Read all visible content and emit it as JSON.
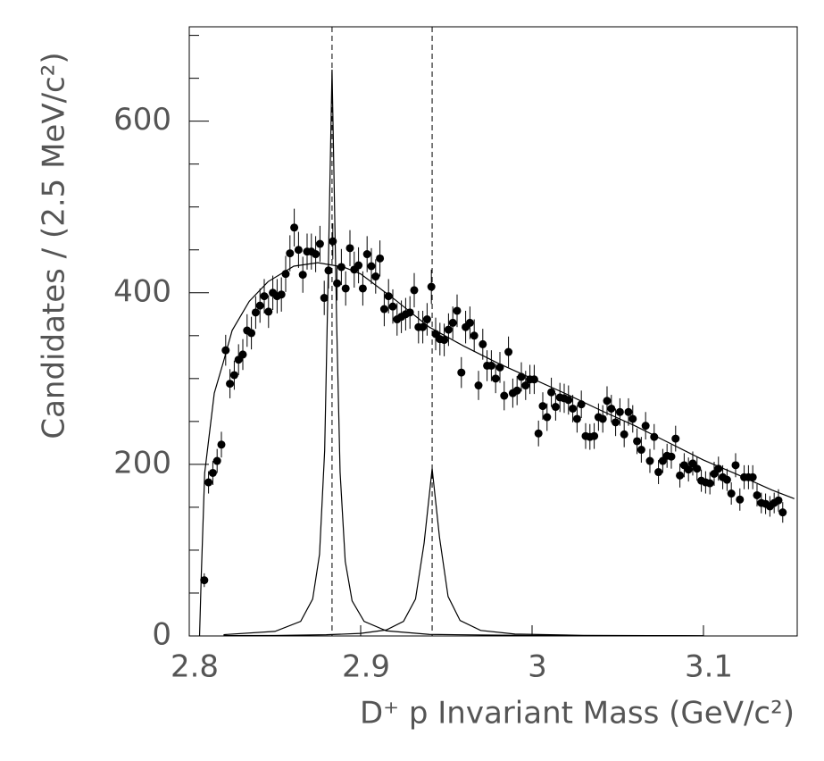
{
  "chart_data": {
    "type": "scatter",
    "x_label": "D⁺ p Invariant Mass (GeV/c²)",
    "y_label": "Candidates / (2.5 MeV/c²)",
    "xlim": [
      2.8,
      3.1547
    ],
    "ylim": [
      0,
      710
    ],
    "xticks": [
      2.8,
      2.9,
      3,
      3.1
    ],
    "yticks": [
      0,
      200,
      400,
      600
    ],
    "y_minor_ticks": [
      50,
      100,
      150,
      250,
      300,
      350,
      450,
      500,
      550,
      650,
      700
    ],
    "points": {
      "color": "#000000",
      "x": [
        2.80875,
        2.81125,
        2.81375,
        2.81625,
        2.81875,
        2.82125,
        2.82375,
        2.82625,
        2.82875,
        2.83125,
        2.83375,
        2.83625,
        2.83875,
        2.84125,
        2.84375,
        2.84625,
        2.84875,
        2.85125,
        2.85375,
        2.85625,
        2.85875,
        2.86125,
        2.86375,
        2.86625,
        2.86875,
        2.87125,
        2.87375,
        2.87625,
        2.87875,
        2.88125,
        2.88375,
        2.88625,
        2.88875,
        2.89125,
        2.89375,
        2.89625,
        2.89875,
        2.90125,
        2.90375,
        2.90625,
        2.90875,
        2.91125,
        2.91375,
        2.91625,
        2.91875,
        2.92125,
        2.92375,
        2.92625,
        2.92875,
        2.93125,
        2.93375,
        2.93625,
        2.93875,
        2.94125,
        2.94375,
        2.94625,
        2.94875,
        2.95125,
        2.95375,
        2.95625,
        2.95875,
        2.96125,
        2.96375,
        2.96625,
        2.96875,
        2.97125,
        2.97375,
        2.97625,
        2.97875,
        2.98125,
        2.98375,
        2.98625,
        2.98875,
        2.99125,
        2.99375,
        2.99625,
        2.99875,
        3.00125,
        3.00375,
        3.00625,
        3.00875,
        3.01125,
        3.01375,
        3.01625,
        3.01875,
        3.02125,
        3.02375,
        3.02625,
        3.02875,
        3.03125,
        3.03375,
        3.03625,
        3.03875,
        3.04125,
        3.04375,
        3.04625,
        3.04875,
        3.05125,
        3.05375,
        3.05625,
        3.05875,
        3.06125,
        3.06375,
        3.06625,
        3.06875,
        3.07125,
        3.07375,
        3.07625,
        3.07875,
        3.08125,
        3.08375,
        3.08625,
        3.08875,
        3.09125,
        3.09375,
        3.09625,
        3.09875,
        3.10125,
        3.10375,
        3.10625,
        3.10875,
        3.11125,
        3.11375,
        3.11625,
        3.11875,
        3.12125,
        3.12375,
        3.12625,
        3.12875,
        3.13125,
        3.13375,
        3.13625,
        3.13875,
        3.14125,
        3.14375,
        3.14625
      ],
      "values": [
        65,
        179,
        190,
        204,
        223,
        333,
        294,
        304,
        322,
        328,
        356,
        353,
        377,
        385,
        396,
        378,
        400,
        396,
        398,
        422,
        446,
        476,
        450,
        421,
        448,
        448,
        445,
        457,
        394,
        426,
        460,
        411,
        430,
        405,
        452,
        427,
        432,
        405,
        445,
        431,
        419,
        440,
        381,
        396,
        384,
        369,
        372,
        375,
        377,
        403,
        360,
        360,
        369,
        407,
        352,
        346,
        345,
        357,
        365,
        379,
        307,
        360,
        365,
        350,
        292,
        340,
        315,
        315,
        300,
        313,
        280,
        331,
        283,
        286,
        302,
        292,
        299,
        299,
        236,
        268,
        255,
        284,
        267,
        278,
        277,
        275,
        265,
        253,
        270,
        233,
        232,
        233,
        255,
        253,
        274,
        265,
        249,
        261,
        235,
        261,
        253,
        227,
        217,
        245,
        204,
        232,
        191,
        204,
        210,
        209,
        230,
        187,
        199,
        194,
        201,
        195,
        181,
        179,
        178,
        189,
        195,
        185,
        182,
        166,
        199,
        159,
        185,
        185,
        185,
        164,
        155,
        154,
        151,
        155,
        158,
        144
      ],
      "errors": [
        8,
        13,
        14,
        14,
        15,
        18,
        17,
        17,
        18,
        18,
        19,
        19,
        19,
        20,
        20,
        19,
        20,
        20,
        20,
        21,
        21,
        22,
        21,
        21,
        21,
        21,
        21,
        21,
        20,
        21,
        21,
        20,
        21,
        20,
        21,
        21,
        21,
        20,
        21,
        21,
        20,
        21,
        20,
        20,
        20,
        19,
        19,
        19,
        19,
        20,
        19,
        19,
        19,
        20,
        19,
        19,
        19,
        19,
        19,
        19,
        18,
        19,
        19,
        19,
        17,
        18,
        18,
        18,
        17,
        18,
        17,
        18,
        17,
        17,
        17,
        17,
        17,
        17,
        15,
        16,
        16,
        17,
        16,
        17,
        17,
        17,
        16,
        16,
        16,
        15,
        15,
        15,
        16,
        16,
        17,
        16,
        16,
        16,
        15,
        16,
        16,
        15,
        15,
        16,
        14,
        15,
        14,
        14,
        14,
        14,
        15,
        14,
        14,
        14,
        14,
        14,
        13,
        13,
        13,
        14,
        14,
        14,
        13,
        13,
        14,
        13,
        14,
        14,
        14,
        13,
        12,
        12,
        12,
        12,
        13,
        12
      ]
    },
    "curves": [
      {
        "color": "#000000",
        "x": [
          2.806,
          2.807,
          2.809,
          2.8146,
          2.82,
          2.825,
          2.835,
          2.846,
          2.861,
          2.875,
          2.89,
          2.9,
          2.92,
          2.94,
          2.96,
          2.98,
          3.0,
          3.02,
          3.04,
          3.06,
          3.08,
          3.1,
          3.12,
          3.14,
          3.153
        ],
        "values": [
          0,
          70,
          190,
          283,
          320,
          356,
          390,
          413,
          431,
          435,
          430,
          422,
          392,
          360,
          338,
          318,
          300,
          282,
          263,
          245,
          225,
          205,
          188,
          170,
          160
        ]
      },
      {
        "color": "#000000",
        "x": [
          2.82,
          2.85,
          2.865,
          2.872,
          2.876,
          2.879,
          2.881,
          2.8833,
          2.886,
          2.888,
          2.891,
          2.895,
          2.902,
          2.915,
          2.94,
          3.0,
          3.1
        ],
        "values": [
          1.5,
          5.3,
          17,
          43,
          95,
          216,
          415,
          660,
          365,
          191,
          87,
          41,
          17,
          6,
          1.8,
          0.5,
          0.2
        ]
      },
      {
        "color": "#000000",
        "x": [
          2.82,
          2.85,
          2.88,
          2.9,
          2.915,
          2.925,
          2.932,
          2.937,
          2.9417,
          2.946,
          2.951,
          2.958,
          2.97,
          2.99,
          3.03,
          3.1
        ],
        "values": [
          0.4,
          0.6,
          1.4,
          3,
          7,
          17,
          43,
          108,
          195,
          115,
          46,
          18,
          6.4,
          2.2,
          0.7,
          0.2
        ]
      }
    ],
    "reference_lines": {
      "x": [
        2.8833,
        2.9417
      ],
      "dashed": true,
      "color": "#000000"
    }
  }
}
